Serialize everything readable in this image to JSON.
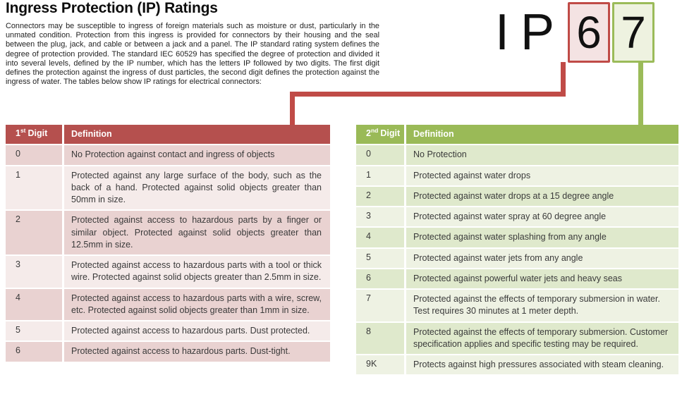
{
  "page": {
    "title": "Ingress Protection (IP) Ratings",
    "intro": "Connectors may be susceptible to ingress of foreign materials such as moisture or dust, particularly in the unmated condition. Protection from this ingress is provided for connectors by their housing and the seal between the plug, jack, and cable or between a jack and a panel. The IP standard rating system defines the degree of protection provided. The standard IEC 60529 has specified the degree of protection and divided it into several levels, defined by the IP number, which has the letters IP followed by two digits. The first digit defines the protection against the ingress of dust particles, the second digit defines the protection against the ingress of water. The tables below show IP ratings for electrical connectors:"
  },
  "ip_graphic": {
    "letter_i": "I",
    "letter_p": "P",
    "first_digit": "6",
    "second_digit": "7"
  },
  "colors": {
    "red_header": "#b5504e",
    "red_line": "#c04b47",
    "red_row_dark": "#e9d2d1",
    "red_row_light": "#f5ebea",
    "red_box_fill": "#f4e3e3",
    "green_header": "#9aba57",
    "green_line": "#9bbb59",
    "green_row_dark": "#dfe9cc",
    "green_row_light": "#eef2e3",
    "green_box_fill": "#eef2e0"
  },
  "table1": {
    "header": {
      "digit_num": "1",
      "digit_sup": "st",
      "digit_word": "Digit",
      "definition": "Definition"
    },
    "rows": [
      {
        "digit": "0",
        "definition": "No Protection against contact and ingress of objects"
      },
      {
        "digit": "1",
        "definition": "Protected against any large surface of the body, such as the back of a hand. Protected against solid objects greater than 50mm in size."
      },
      {
        "digit": "2",
        "definition": "Protected against access to hazardous parts by a finger or similar object. Protected against solid objects greater than 12.5mm in size."
      },
      {
        "digit": "3",
        "definition": "Protected against access to hazardous parts with a tool or thick wire. Protected against solid objects greater than 2.5mm in size."
      },
      {
        "digit": "4",
        "definition": "Protected against access to hazardous parts with a wire, screw, etc. Protected against solid objects greater than 1mm in size."
      },
      {
        "digit": "5",
        "definition": "Protected against access to hazardous parts. Dust protected."
      },
      {
        "digit": "6",
        "definition": "Protected against access to hazardous parts. Dust-tight."
      }
    ]
  },
  "table2": {
    "header": {
      "digit_num": "2",
      "digit_sup": "nd",
      "digit_word": "Digit",
      "definition": "Definition"
    },
    "rows": [
      {
        "digit": "0",
        "definition": "No Protection"
      },
      {
        "digit": "1",
        "definition": "Protected against water drops"
      },
      {
        "digit": "2",
        "definition": "Protected against water drops at a 15 degree angle"
      },
      {
        "digit": "3",
        "definition": "Protected against water spray at 60 degree angle"
      },
      {
        "digit": "4",
        "definition": "Protected against water splashing from any angle"
      },
      {
        "digit": "5",
        "definition": "Protected against water jets from any angle"
      },
      {
        "digit": "6",
        "definition": "Protected against powerful water jets and heavy seas"
      },
      {
        "digit": "7",
        "definition": "Protected against the effects of temporary submersion in water. Test requires 30 minutes at 1 meter depth."
      },
      {
        "digit": "8",
        "definition": "Protected against the effects of temporary submersion. Customer specification applies and specific testing may be required."
      },
      {
        "digit": "9K",
        "definition": "Protects against high pressures associated with steam cleaning."
      }
    ]
  }
}
